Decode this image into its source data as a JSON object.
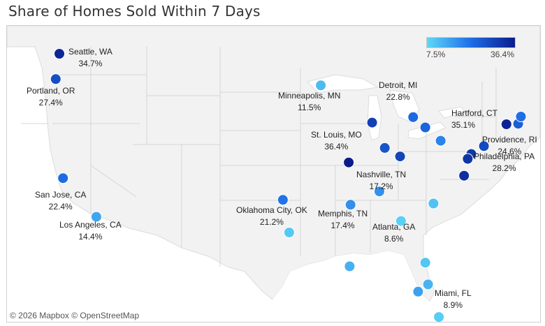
{
  "title": "Share of Homes Sold Within 7 Days",
  "legend": {
    "min_label": "7.5%",
    "max_label": "36.4%",
    "min_value": 7.5,
    "max_value": 36.4,
    "color_low": "#5ed8f7",
    "color_high": "#0a1c8c"
  },
  "attribution": "© 2026 Mapbox  © OpenStreetMap",
  "cities": [
    {
      "name": "Seattle, WA",
      "value": "34.7%",
      "share": 34.7,
      "lon": -122.3,
      "lat": 47.6
    },
    {
      "name": "Portland, OR",
      "value": "27.4%",
      "share": 27.4,
      "lon": -122.7,
      "lat": 45.5
    },
    {
      "name": "San Jose, CA",
      "value": "22.4%",
      "share": 22.4,
      "lon": -121.9,
      "lat": 37.3
    },
    {
      "name": "Los Angeles, CA",
      "value": "14.4%",
      "share": 14.4,
      "lon": -118.2,
      "lat": 34.1
    },
    {
      "name": "Minneapolis, MN",
      "value": "11.5%",
      "share": 11.5,
      "lon": -93.3,
      "lat": 44.98
    },
    {
      "name": "St. Louis, MO",
      "value": "36.4%",
      "share": 36.4,
      "lon": -90.2,
      "lat": 38.6
    },
    {
      "name": "Oklahoma City, OK",
      "value": "21.2%",
      "share": 21.2,
      "lon": -97.5,
      "lat": 35.5
    },
    {
      "name": "Memphis, TN",
      "value": "17.4%",
      "share": 17.4,
      "lon": -90.0,
      "lat": 35.1
    },
    {
      "name": "Nashville, TN",
      "value": "17.2%",
      "share": 17.2,
      "lon": -86.8,
      "lat": 36.2
    },
    {
      "name": "Atlanta, GA",
      "value": "8.6%",
      "share": 8.6,
      "lon": -84.4,
      "lat": 33.75
    },
    {
      "name": "Detroit, MI",
      "value": "22.8%",
      "share": 22.8,
      "lon": -83.05,
      "lat": 42.35
    },
    {
      "name": "Hartford, CT",
      "value": "35.1%",
      "share": 35.1,
      "lon": -72.7,
      "lat": 41.76
    },
    {
      "name": "Providence, RI",
      "value": "24.6%",
      "share": 24.6,
      "lon": -71.4,
      "lat": 41.8
    },
    {
      "name": "Philadelphia, PA",
      "value": "28.2%",
      "share": 28.2,
      "lon": -75.2,
      "lat": 39.95
    },
    {
      "name": "Miami, FL",
      "value": "8.9%",
      "share": 8.9,
      "lon": -80.2,
      "lat": 25.8
    }
  ],
  "unlabeled_markers": [
    {
      "share": 9.5,
      "lon": -96.8,
      "lat": 32.8
    },
    {
      "share": 10.0,
      "lon": -81.7,
      "lat": 30.3
    },
    {
      "share": 12.5,
      "lon": -81.4,
      "lat": 28.5
    },
    {
      "share": 15.0,
      "lon": -82.5,
      "lat": 27.9
    },
    {
      "share": 13.0,
      "lon": -90.1,
      "lat": 30.0
    },
    {
      "share": 10.5,
      "lon": -80.8,
      "lat": 35.2
    },
    {
      "share": 30.0,
      "lon": -87.6,
      "lat": 41.9
    },
    {
      "share": 29.0,
      "lon": -84.5,
      "lat": 39.1
    },
    {
      "share": 26.5,
      "lon": -86.2,
      "lat": 39.8
    },
    {
      "share": 23.5,
      "lon": -81.7,
      "lat": 41.5
    },
    {
      "share": 19.0,
      "lon": -80.0,
      "lat": 40.4
    },
    {
      "share": 31.5,
      "lon": -76.6,
      "lat": 39.3
    },
    {
      "share": 32.0,
      "lon": -77.0,
      "lat": 38.9
    },
    {
      "share": 33.0,
      "lon": -77.4,
      "lat": 37.5
    },
    {
      "share": 22.0,
      "lon": -71.1,
      "lat": 42.4
    }
  ]
}
